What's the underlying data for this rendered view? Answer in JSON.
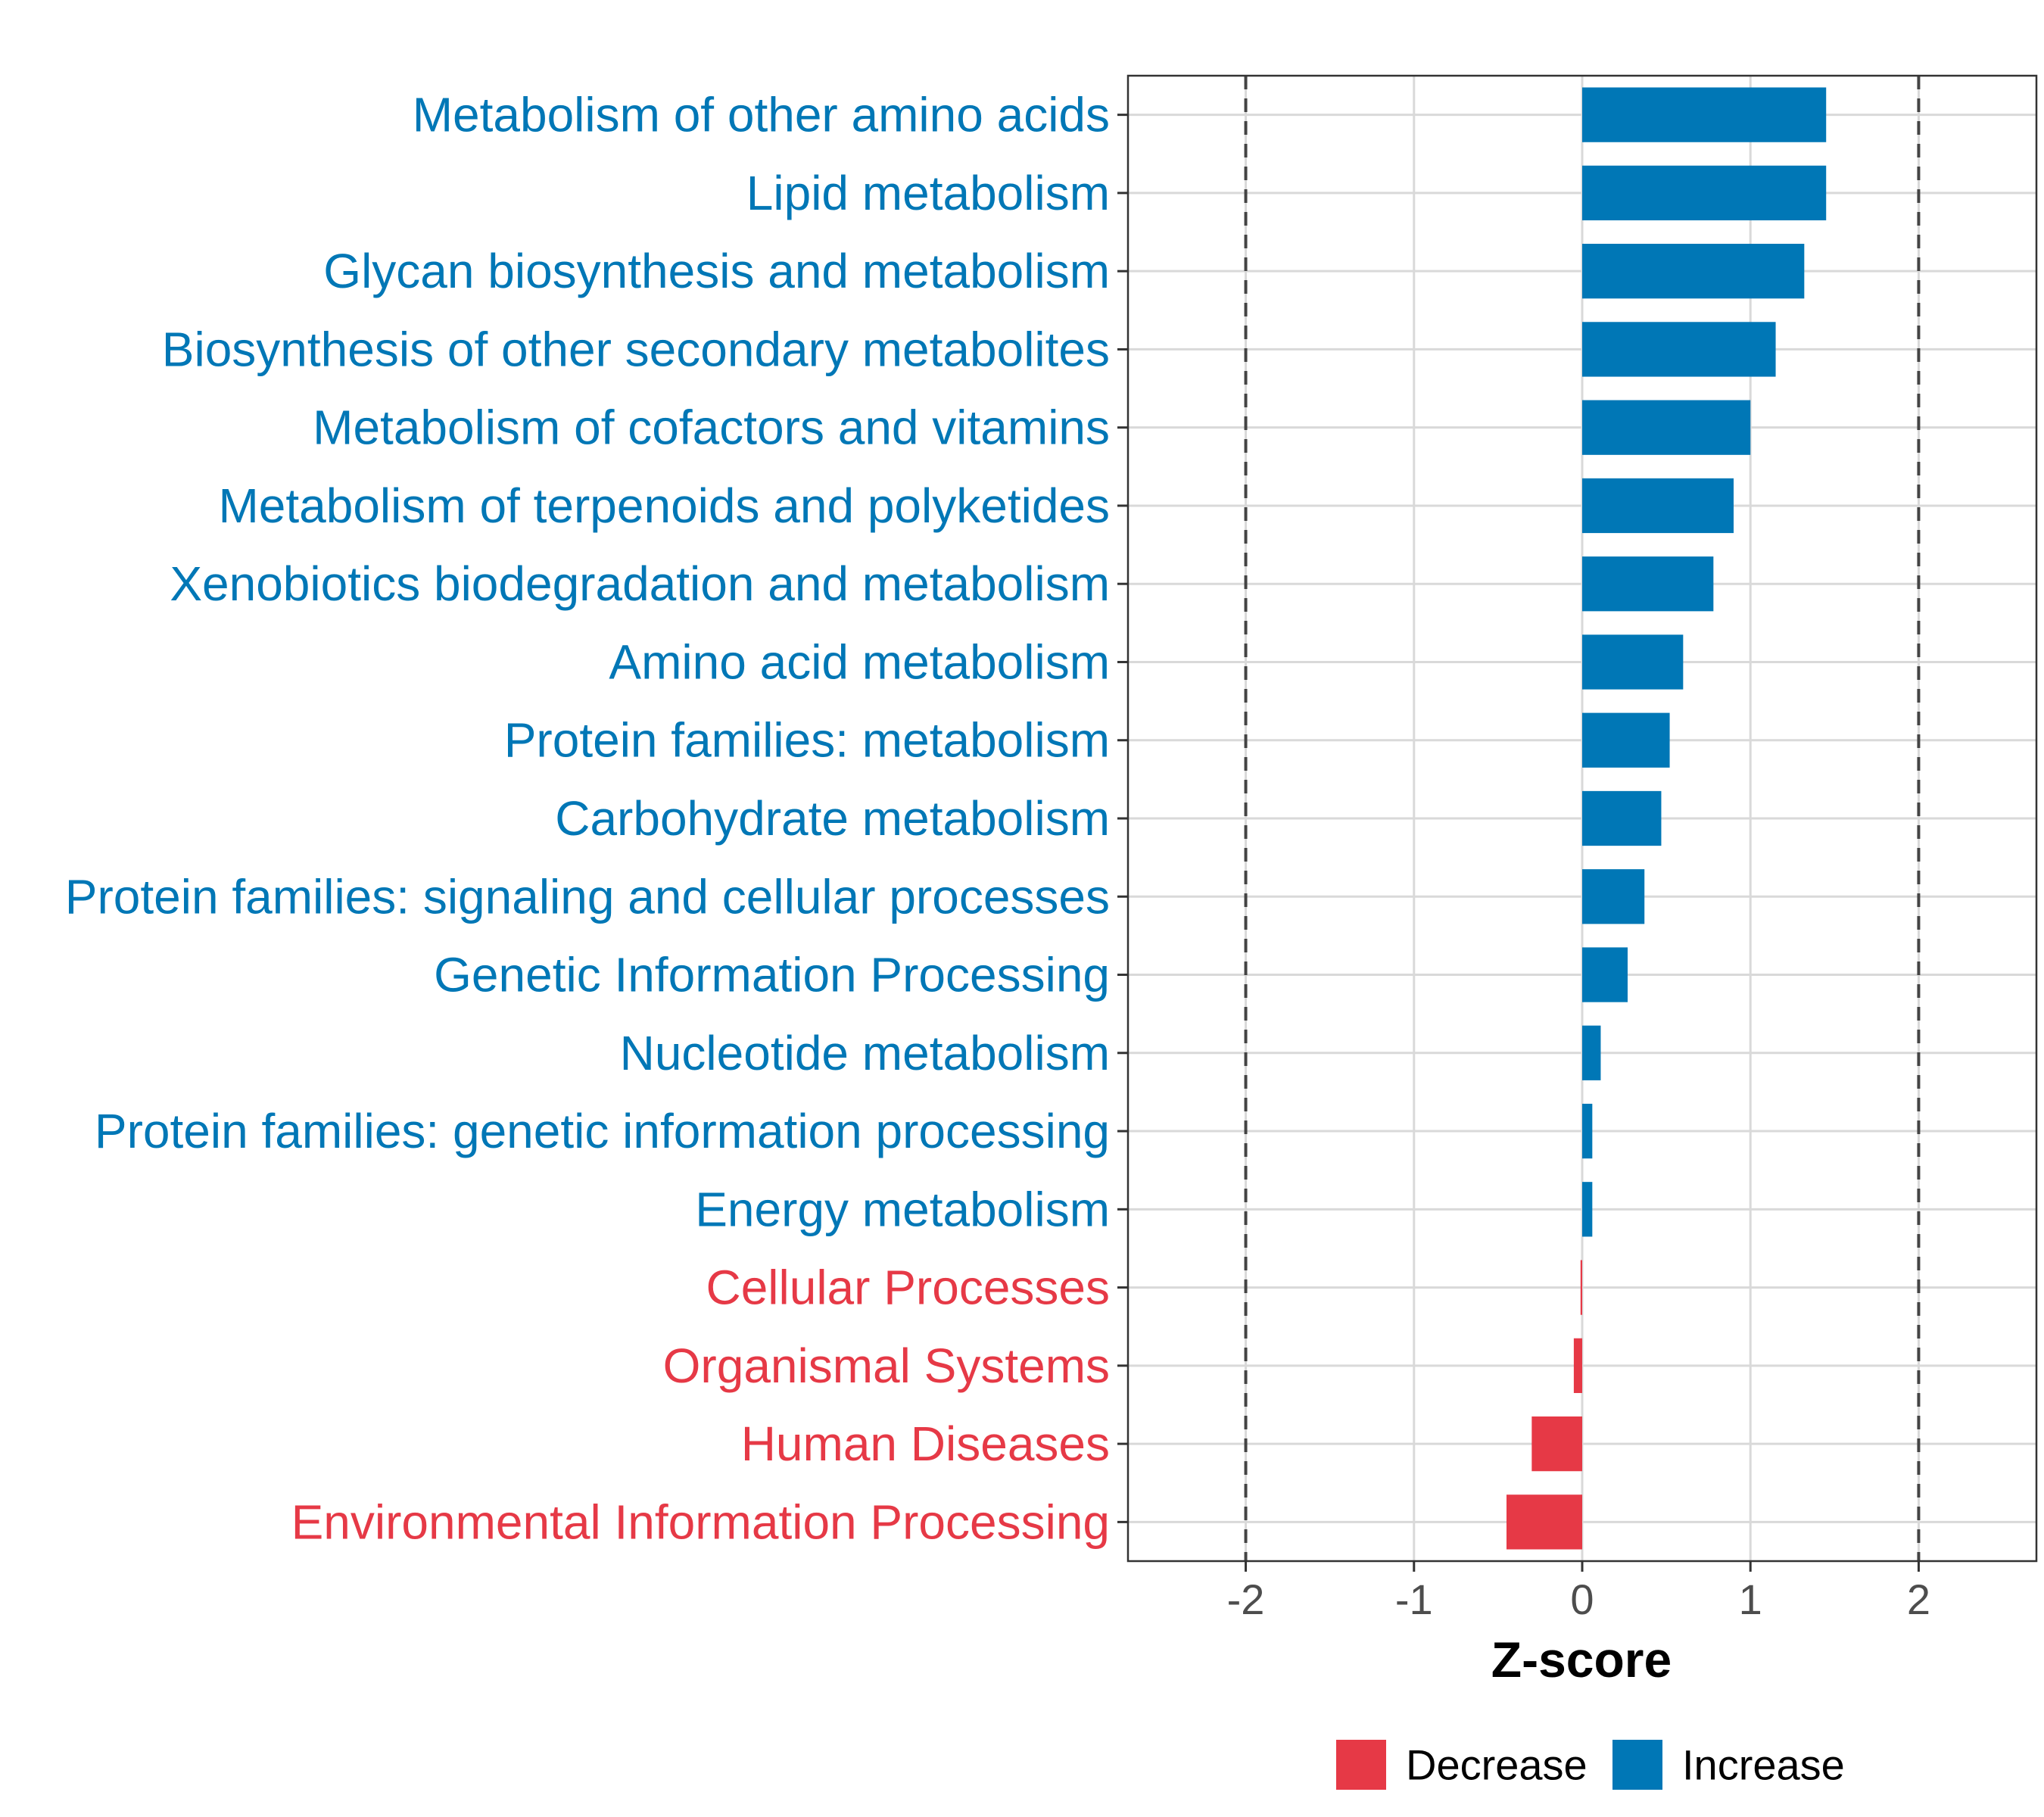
{
  "chart_data": {
    "type": "bar",
    "orientation": "horizontal",
    "xlabel": "Z-score",
    "xlim": [
      -2.7,
      2.7
    ],
    "xticks": [
      -2,
      -1,
      0,
      1,
      2
    ],
    "xtick_labels": [
      "-2",
      "-1",
      "0",
      "1",
      "2"
    ],
    "reference_lines": [
      -2,
      2
    ],
    "grid": true,
    "legend_position": "bottom",
    "colors": {
      "Decrease": "#E63946",
      "Increase": "#0077B6"
    },
    "legend": [
      {
        "label": "Decrease",
        "color": "#E63946"
      },
      {
        "label": "Increase",
        "color": "#0077B6"
      }
    ],
    "categories": [
      "Metabolism of other amino acids",
      "Lipid metabolism",
      "Glycan biosynthesis and metabolism",
      "Biosynthesis of other secondary metabolites",
      "Metabolism of cofactors and vitamins",
      "Metabolism of terpenoids and polyketides",
      "Xenobiotics biodegradation and metabolism",
      "Amino acid metabolism",
      "Protein families: metabolism",
      "Carbohydrate metabolism",
      "Protein families: signaling and cellular processes",
      "Genetic Information Processing",
      "Nucleotide metabolism",
      "Protein families: genetic information processing",
      "Energy metabolism",
      "Cellular Processes",
      "Organismal Systems",
      "Human Diseases",
      "Environmental Information Processing"
    ],
    "values": [
      1.45,
      1.45,
      1.32,
      1.15,
      1.0,
      0.9,
      0.78,
      0.6,
      0.52,
      0.47,
      0.37,
      0.27,
      0.11,
      0.06,
      0.06,
      -0.01,
      -0.05,
      -0.3,
      -0.45
    ],
    "groups": [
      "Increase",
      "Increase",
      "Increase",
      "Increase",
      "Increase",
      "Increase",
      "Increase",
      "Increase",
      "Increase",
      "Increase",
      "Increase",
      "Increase",
      "Increase",
      "Increase",
      "Increase",
      "Decrease",
      "Decrease",
      "Decrease",
      "Decrease"
    ]
  }
}
